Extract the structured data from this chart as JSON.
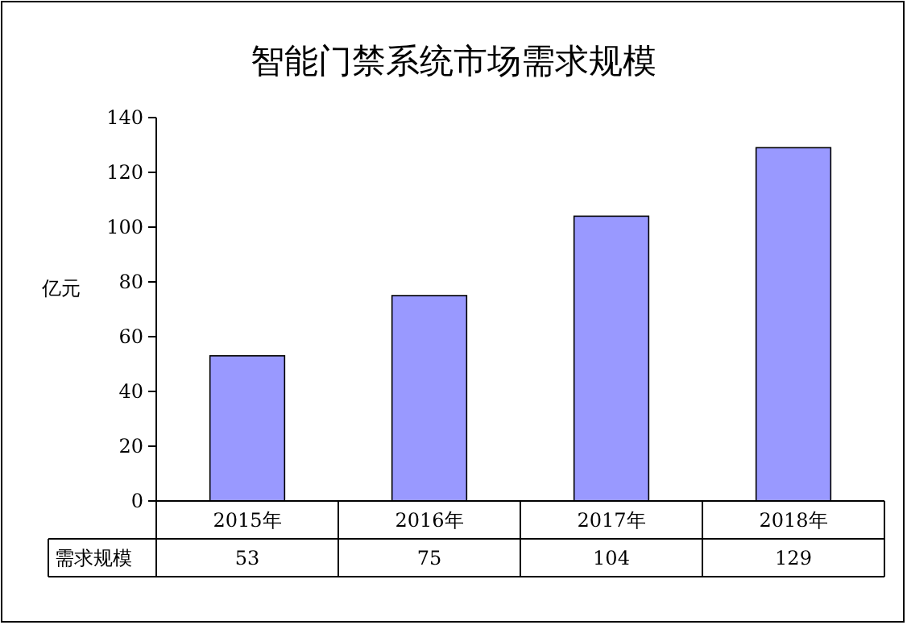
{
  "chart_data": {
    "type": "bar",
    "title": "智能门禁系统市场需求规模",
    "ylabel": "亿元",
    "categories": [
      "2015年",
      "2016年",
      "2017年",
      "2018年"
    ],
    "series": [
      {
        "name": "需求规模",
        "color": "#9999ff",
        "values": [
          53,
          75,
          104,
          129
        ]
      }
    ],
    "ylim": [
      0,
      140
    ],
    "yticks": [
      0,
      20,
      40,
      60,
      80,
      100,
      120,
      140
    ],
    "grid": false,
    "legend": "bottom left",
    "data_labels": true
  }
}
